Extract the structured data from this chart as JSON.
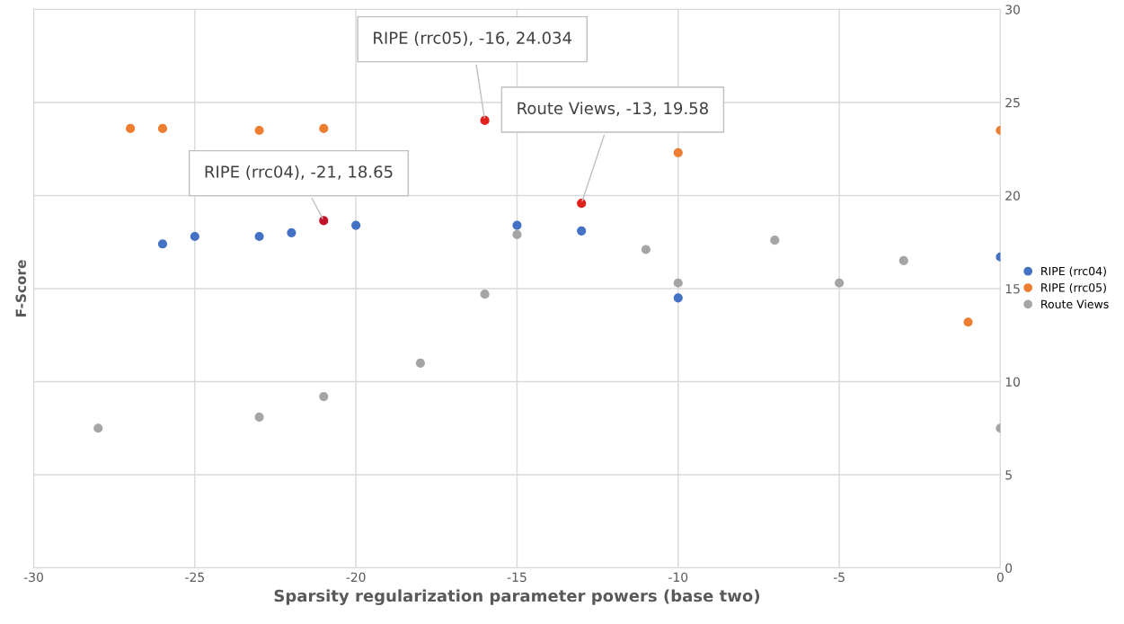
{
  "chart_data": {
    "type": "scatter",
    "xlabel": "Sparsity regularization parameter powers (base two)",
    "ylabel": "F-Score",
    "xlim": [
      -30,
      0
    ],
    "xticks": [
      -30,
      -25,
      -20,
      -15,
      -10,
      -5,
      0
    ],
    "ylim": [
      0,
      30
    ],
    "yticks": [
      0,
      5,
      10,
      15,
      20,
      25,
      30
    ],
    "grid": true,
    "legend": "right",
    "marker": "circle",
    "series": [
      {
        "name": "RIPE (rrc04)",
        "color": "#4472c4",
        "x": [
          -26,
          -25,
          -23,
          -22,
          -21,
          -20,
          -15,
          -13,
          -10,
          0
        ],
        "values": [
          17.4,
          17.8,
          17.8,
          18.0,
          18.65,
          18.4,
          18.4,
          18.1,
          14.5,
          16.7
        ],
        "colors": [
          "#4472c4",
          "#4472c4",
          "#4472c4",
          "#4472c4",
          "#c0122a",
          "#4472c4",
          "#4472c4",
          "#4472c4",
          "#4472c4",
          "#4472c4"
        ]
      },
      {
        "name": "RIPE (rrc05)",
        "color": "#ed7d31",
        "x": [
          -27,
          -26,
          -23,
          -21,
          -16,
          -10,
          -1,
          0
        ],
        "values": [
          23.6,
          23.6,
          23.5,
          23.6,
          24.034,
          22.3,
          13.2,
          23.5
        ],
        "colors": [
          "#ed7d31",
          "#ed7d31",
          "#ed7d31",
          "#ed7d31",
          "#e0201b",
          "#ed7d31",
          "#ed7d31",
          "#ed7d31"
        ]
      },
      {
        "name": "Route Views",
        "color": "#a5a5a5",
        "x": [
          -28,
          -23,
          -21,
          -18,
          -16,
          -15,
          -13,
          -11,
          -10,
          -7,
          -5,
          -3,
          0
        ],
        "values": [
          7.5,
          8.1,
          9.2,
          11.0,
          14.7,
          17.9,
          19.58,
          17.1,
          15.3,
          17.6,
          15.3,
          16.5,
          7.5
        ],
        "colors": [
          "#a5a5a5",
          "#a5a5a5",
          "#a5a5a5",
          "#a5a5a5",
          "#a5a5a5",
          "#a5a5a5",
          "#e0201b",
          "#a5a5a5",
          "#a5a5a5",
          "#a5a5a5",
          "#a5a5a5",
          "#a5a5a5",
          "#a5a5a5"
        ]
      }
    ],
    "annotations": [
      {
        "text": "RIPE (rrc05), -16, 24.034",
        "x": -16,
        "y": 24.034
      },
      {
        "text": "Route Views, -13, 19.58",
        "x": -13,
        "y": 19.58
      },
      {
        "text": "RIPE (rrc04), -21, 18.65",
        "x": -21,
        "y": 18.65
      }
    ]
  }
}
